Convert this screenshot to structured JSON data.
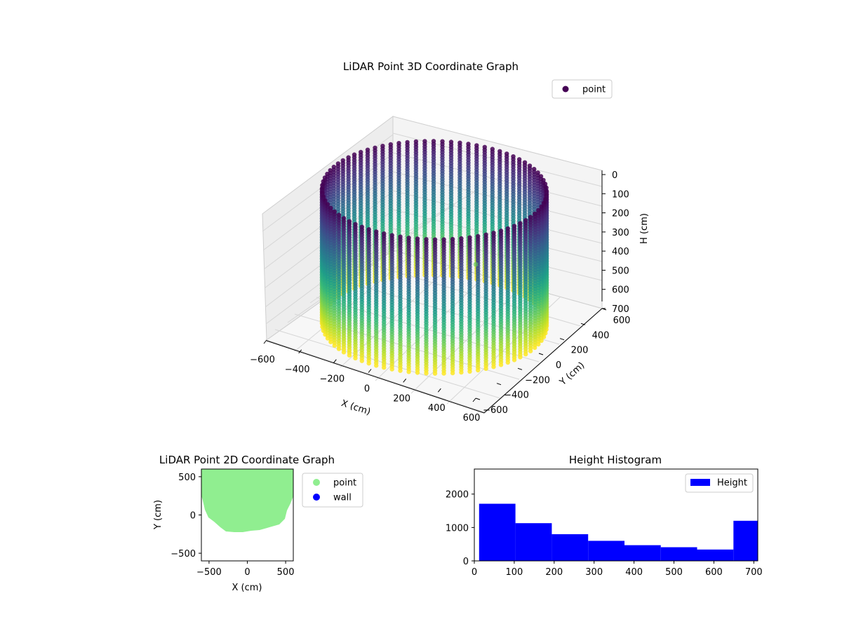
{
  "colors": {
    "viridis_dark": "#440154",
    "viridis_mid": "#21918c",
    "viridis_light": "#bddf26",
    "point_green": "#90ee90",
    "wall_blue": "#0000ff",
    "hist_blue": "#0000ff",
    "axis": "#000000",
    "pane": "#f2f2f2",
    "grid": "#d9d9d9"
  },
  "chart_data": [
    {
      "id": "lidar-3d",
      "type": "scatter",
      "title": "LiDAR Point 3D Coordinate Graph",
      "xlabel": "X (cm)",
      "ylabel": "Y (cm)",
      "zlabel": "H (cm)",
      "xlim": [
        -600,
        600
      ],
      "ylim": [
        -600,
        600
      ],
      "zlim": [
        0,
        700
      ],
      "z_inverted": true,
      "xticks": [
        "−600",
        "−400",
        "−200",
        "0",
        "200",
        "400",
        "600"
      ],
      "yticks": [
        "−600",
        "−400",
        "−200",
        "0",
        "200",
        "400",
        "600"
      ],
      "zticks": [
        "0",
        "100",
        "200",
        "300",
        "400",
        "500",
        "600",
        "700"
      ],
      "legend": [
        "point"
      ],
      "legend_placement": "upper-right",
      "colormap": "viridis",
      "description_shape": "cylindrical wall of points, radius ~600 cm, heights 0–700 cm",
      "series": [
        {
          "name": "point",
          "note": "wall points sampled around circle, colored by height",
          "radius": 600,
          "height_range": [
            0,
            700
          ],
          "stray_points": [
            {
              "x": 600,
              "y": -600,
              "h": 0
            }
          ]
        }
      ]
    },
    {
      "id": "lidar-2d",
      "type": "scatter",
      "title": "LiDAR Point 2D Coordinate Graph",
      "xlabel": "X (cm)",
      "ylabel": "Y (cm)",
      "xlim": [
        -600,
        600
      ],
      "ylim": [
        -600,
        600
      ],
      "xticks": [
        "−500",
        "0",
        "500"
      ],
      "yticks": [
        "−500",
        "0",
        "500"
      ],
      "legend": [
        "point",
        "wall"
      ],
      "legend_placement": "outside-right",
      "series": [
        {
          "name": "point",
          "note": "filled region covering top and middle of area, lower edge near y≈-220"
        },
        {
          "name": "wall"
        }
      ]
    },
    {
      "id": "height-hist",
      "type": "bar",
      "title": "Height Histogram",
      "xlabel": "",
      "ylabel": "",
      "xlim": [
        0,
        710
      ],
      "ylim": [
        0,
        2750
      ],
      "xticks": [
        "0",
        "100",
        "200",
        "300",
        "400",
        "500",
        "600",
        "700"
      ],
      "yticks": [
        "0",
        "1000",
        "2000"
      ],
      "legend": [
        "Height"
      ],
      "legend_placement": "upper-right",
      "bins": [
        {
          "start": 12,
          "end": 103,
          "count": 1710
        },
        {
          "start": 103,
          "end": 194,
          "count": 1130
        },
        {
          "start": 194,
          "end": 285,
          "count": 800
        },
        {
          "start": 285,
          "end": 376,
          "count": 600
        },
        {
          "start": 376,
          "end": 467,
          "count": 470
        },
        {
          "start": 467,
          "end": 558,
          "count": 410
        },
        {
          "start": 558,
          "end": 649,
          "count": 340
        },
        {
          "start": 649,
          "end": 710,
          "count": 1200
        }
      ]
    }
  ]
}
